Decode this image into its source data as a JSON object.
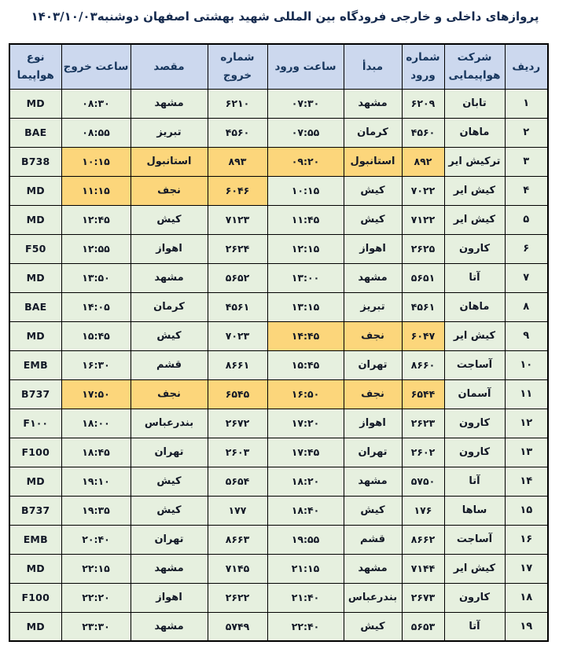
{
  "title": "پروازهای داخلی و خارجی فرودگاه بین المللی شهید بهشتی اصفهان دوشنبه۱۴۰۳/۱۰/۰۳",
  "colors": {
    "header_bg": "#ccd8ee",
    "row_bg": "#e6f0df",
    "hl_bg": "#fcd67b",
    "header_text": "#17365d",
    "cell_text": "#121826"
  },
  "table": {
    "column_keys": [
      "row",
      "airline",
      "arr_no",
      "origin",
      "arr_time",
      "dep_no",
      "dest",
      "dep_time",
      "aircraft"
    ],
    "headers": [
      "ردیف",
      "شرکت هواپیمایی",
      "شماره ورود",
      "مبدأ",
      "ساعت ورود",
      "شماره خروج",
      "مقصد",
      "ساعت خروج",
      "نوع هواپیما"
    ],
    "rows": [
      {
        "row": "۱",
        "airline": "تابان",
        "arr_no": "۶۲۰۹",
        "origin": "مشهد",
        "arr_time": "۰۷:۳۰",
        "dep_no": "۶۲۱۰",
        "dest": "مشهد",
        "dep_time": "۰۸:۳۰",
        "aircraft": "MD",
        "highlight": []
      },
      {
        "row": "۲",
        "airline": "ماهان",
        "arr_no": "۴۵۶۰",
        "origin": "کرمان",
        "arr_time": "۰۷:۵۵",
        "dep_no": "۴۵۶۰",
        "dest": "تبریز",
        "dep_time": "۰۸:۵۵",
        "aircraft": "BAE",
        "highlight": []
      },
      {
        "row": "۳",
        "airline": "ترکیش ایر",
        "arr_no": "۸۹۲",
        "origin": "استانبول",
        "arr_time": "۰۹:۲۰",
        "dep_no": "۸۹۳",
        "dest": "استانبول",
        "dep_time": "۱۰:۱۵",
        "aircraft": "B738",
        "highlight": [
          "arr_no",
          "origin",
          "arr_time",
          "dep_no",
          "dest",
          "dep_time"
        ]
      },
      {
        "row": "۴",
        "airline": "کیش ایر",
        "arr_no": "۷۰۲۲",
        "origin": "کیش",
        "arr_time": "۱۰:۱۵",
        "dep_no": "۶۰۴۶",
        "dest": "نجف",
        "dep_time": "۱۱:۱۵",
        "aircraft": "MD",
        "highlight": [
          "dep_no",
          "dest",
          "dep_time"
        ]
      },
      {
        "row": "۵",
        "airline": "کیش ایر",
        "arr_no": "۷۱۲۲",
        "origin": "کیش",
        "arr_time": "۱۱:۴۵",
        "dep_no": "۷۱۲۳",
        "dest": "کیش",
        "dep_time": "۱۲:۴۵",
        "aircraft": "MD",
        "highlight": []
      },
      {
        "row": "۶",
        "airline": "کارون",
        "arr_no": "۲۶۲۵",
        "origin": "اهواز",
        "arr_time": "۱۲:۱۵",
        "dep_no": "۲۶۲۴",
        "dest": "اهواز",
        "dep_time": "۱۲:۵۵",
        "aircraft": "F50",
        "highlight": []
      },
      {
        "row": "۷",
        "airline": "آتا",
        "arr_no": "۵۶۵۱",
        "origin": "مشهد",
        "arr_time": "۱۳:۰۰",
        "dep_no": "۵۶۵۲",
        "dest": "مشهد",
        "dep_time": "۱۳:۵۰",
        "aircraft": "MD",
        "highlight": []
      },
      {
        "row": "۸",
        "airline": "ماهان",
        "arr_no": "۴۵۶۱",
        "origin": "تبریز",
        "arr_time": "۱۳:۱۵",
        "dep_no": "۴۵۶۱",
        "dest": "کرمان",
        "dep_time": "۱۴:۰۵",
        "aircraft": "BAE",
        "highlight": []
      },
      {
        "row": "۹",
        "airline": "کیش ایر",
        "arr_no": "۶۰۴۷",
        "origin": "نجف",
        "arr_time": "۱۴:۴۵",
        "dep_no": "۷۰۲۳",
        "dest": "کیش",
        "dep_time": "۱۵:۴۵",
        "aircraft": "MD",
        "highlight": [
          "arr_no",
          "origin",
          "arr_time"
        ]
      },
      {
        "row": "۱۰",
        "airline": "آساجت",
        "arr_no": "۸۶۶۰",
        "origin": "تهران",
        "arr_time": "۱۵:۴۵",
        "dep_no": "۸۶۶۱",
        "dest": "قشم",
        "dep_time": "۱۶:۳۰",
        "aircraft": "EMB",
        "highlight": []
      },
      {
        "row": "۱۱",
        "airline": "آسمان",
        "arr_no": "۶۵۴۴",
        "origin": "نجف",
        "arr_time": "۱۶:۵۰",
        "dep_no": "۶۵۴۵",
        "dest": "نجف",
        "dep_time": "۱۷:۵۰",
        "aircraft": "B737",
        "highlight": [
          "arr_no",
          "origin",
          "arr_time",
          "dep_no",
          "dest",
          "dep_time"
        ]
      },
      {
        "row": "۱۲",
        "airline": "کارون",
        "arr_no": "۲۶۲۳",
        "origin": "اهواز",
        "arr_time": "۱۷:۲۰",
        "dep_no": "۲۶۷۲",
        "dest": "بندرعباس",
        "dep_time": "۱۸:۰۰",
        "aircraft": "F۱۰۰",
        "highlight": []
      },
      {
        "row": "۱۳",
        "airline": "کارون",
        "arr_no": "۲۶۰۲",
        "origin": "تهران",
        "arr_time": "۱۷:۴۵",
        "dep_no": "۲۶۰۳",
        "dest": "تهران",
        "dep_time": "۱۸:۴۵",
        "aircraft": "F100",
        "highlight": []
      },
      {
        "row": "۱۴",
        "airline": "آتا",
        "arr_no": "۵۷۵۰",
        "origin": "مشهد",
        "arr_time": "۱۸:۲۰",
        "dep_no": "۵۶۵۴",
        "dest": "کیش",
        "dep_time": "۱۹:۱۰",
        "aircraft": "MD",
        "highlight": []
      },
      {
        "row": "۱۵",
        "airline": "ساها",
        "arr_no": "۱۷۶",
        "origin": "کیش",
        "arr_time": "۱۸:۴۰",
        "dep_no": "۱۷۷",
        "dest": "کیش",
        "dep_time": "۱۹:۳۵",
        "aircraft": "B737",
        "highlight": []
      },
      {
        "row": "۱۶",
        "airline": "آساجت",
        "arr_no": "۸۶۶۲",
        "origin": "قشم",
        "arr_time": "۱۹:۵۵",
        "dep_no": "۸۶۶۳",
        "dest": "تهران",
        "dep_time": "۲۰:۴۰",
        "aircraft": "EMB",
        "highlight": []
      },
      {
        "row": "۱۷",
        "airline": "کیش ایر",
        "arr_no": "۷۱۴۴",
        "origin": "مشهد",
        "arr_time": "۲۱:۱۵",
        "dep_no": "۷۱۴۵",
        "dest": "مشهد",
        "dep_time": "۲۲:۱۵",
        "aircraft": "MD",
        "highlight": []
      },
      {
        "row": "۱۸",
        "airline": "کارون",
        "arr_no": "۲۶۷۳",
        "origin": "بندرعباس",
        "arr_time": "۲۱:۴۰",
        "dep_no": "۲۶۲۲",
        "dest": "اهواز",
        "dep_time": "۲۲:۲۰",
        "aircraft": "F100",
        "highlight": []
      },
      {
        "row": "۱۹",
        "airline": "آتا",
        "arr_no": "۵۶۵۳",
        "origin": "کیش",
        "arr_time": "۲۲:۴۰",
        "dep_no": "۵۷۴۹",
        "dest": "مشهد",
        "dep_time": "۲۳:۳۰",
        "aircraft": "MD",
        "highlight": []
      }
    ]
  }
}
